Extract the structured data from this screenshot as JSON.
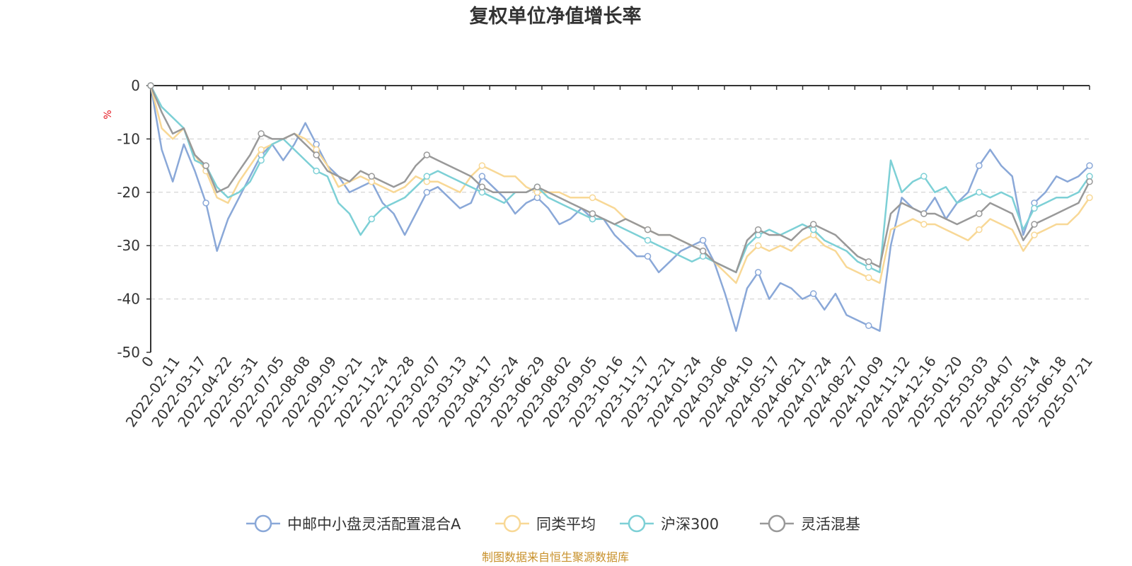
{
  "chart_data": {
    "type": "line",
    "title": "复权单位净值增长率",
    "ylabel": "%",
    "ylim": [
      -50,
      0
    ],
    "yticks": [
      0,
      -10,
      -20,
      -30,
      -40,
      -50
    ],
    "grid": true,
    "legend_position": "bottom",
    "x_labels": [
      "0",
      "2022-02-11",
      "2022-03-17",
      "2022-04-22",
      "2022-05-31",
      "2022-07-05",
      "2022-08-08",
      "2022-09-09",
      "2022-10-21",
      "2022-11-24",
      "2022-12-28",
      "2023-02-07",
      "2023-03-13",
      "2023-04-17",
      "2023-05-24",
      "2023-06-29",
      "2023-08-02",
      "2023-09-05",
      "2023-10-16",
      "2023-11-17",
      "2023-12-21",
      "2024-01-24",
      "2024-03-06",
      "2024-04-10",
      "2024-05-17",
      "2024-06-21",
      "2024-07-24",
      "2024-08-27",
      "2024-10-09",
      "2024-11-12",
      "2024-12-16",
      "2025-01-20",
      "2025-03-03",
      "2025-04-07",
      "2025-05-14",
      "2025-06-18",
      "2025-07-21"
    ],
    "series": [
      {
        "name": "中邮中小盘灵活配置混合A",
        "color": "#8aa8d8",
        "values": [
          0,
          -12,
          -18,
          -11,
          -16,
          -22,
          -31,
          -25,
          -21,
          -17,
          -13,
          -11,
          -14,
          -11,
          -7,
          -11,
          -15,
          -17,
          -20,
          -19,
          -18,
          -22,
          -24,
          -28,
          -24,
          -20,
          -19,
          -21,
          -23,
          -22,
          -17,
          -19,
          -21,
          -24,
          -22,
          -21,
          -23,
          -26,
          -25,
          -23,
          -25,
          -25,
          -28,
          -30,
          -32,
          -32,
          -35,
          -33,
          -31,
          -30,
          -29,
          -33,
          -39,
          -46,
          -38,
          -35,
          -40,
          -37,
          -38,
          -40,
          -39,
          -42,
          -39,
          -43,
          -44,
          -45,
          -46,
          -30,
          -21,
          -23,
          -24,
          -21,
          -25,
          -22,
          -20,
          -15,
          -12,
          -15,
          -17,
          -28,
          -22,
          -20,
          -17,
          -18,
          -17,
          -15
        ]
      },
      {
        "name": "同类平均",
        "color": "#f8d896",
        "values": [
          0,
          -8,
          -10,
          -8,
          -13,
          -16,
          -21,
          -22,
          -18,
          -15,
          -12,
          -11,
          -10,
          -9,
          -10,
          -12,
          -15,
          -19,
          -18,
          -17,
          -18,
          -19,
          -20,
          -19,
          -17,
          -18,
          -18,
          -19,
          -20,
          -17,
          -15,
          -16,
          -17,
          -17,
          -19,
          -20,
          -20,
          -20,
          -21,
          -21,
          -21,
          -22,
          -23,
          -25,
          -26,
          -27,
          -28,
          -28,
          -29,
          -30,
          -31,
          -33,
          -35,
          -37,
          -32,
          -30,
          -31,
          -30,
          -31,
          -29,
          -28,
          -30,
          -31,
          -34,
          -35,
          -36,
          -37,
          -27,
          -26,
          -25,
          -26,
          -26,
          -27,
          -28,
          -29,
          -27,
          -25,
          -26,
          -27,
          -31,
          -28,
          -27,
          -26,
          -26,
          -24,
          -21
        ]
      },
      {
        "name": "沪深300",
        "color": "#7dd0d6",
        "values": [
          0,
          -4,
          -6,
          -8,
          -14,
          -15,
          -19,
          -21,
          -20,
          -18,
          -14,
          -11,
          -10,
          -12,
          -14,
          -16,
          -17,
          -22,
          -24,
          -28,
          -25,
          -23,
          -22,
          -21,
          -19,
          -17,
          -16,
          -17,
          -18,
          -19,
          -20,
          -21,
          -22,
          -20,
          -20,
          -19,
          -21,
          -22,
          -23,
          -24,
          -25,
          -25,
          -26,
          -27,
          -28,
          -29,
          -30,
          -31,
          -32,
          -33,
          -32,
          -33,
          -34,
          -35,
          -30,
          -28,
          -27,
          -28,
          -27,
          -26,
          -27,
          -29,
          -30,
          -31,
          -33,
          -34,
          -35,
          -14,
          -20,
          -18,
          -17,
          -20,
          -19,
          -22,
          -21,
          -20,
          -21,
          -20,
          -21,
          -27,
          -23,
          -22,
          -21,
          -21,
          -20,
          -17
        ]
      },
      {
        "name": "灵活混基",
        "color": "#999999",
        "values": [
          0,
          -5,
          -9,
          -8,
          -13,
          -15,
          -20,
          -19,
          -16,
          -13,
          -9,
          -10,
          -10,
          -9,
          -11,
          -13,
          -16,
          -17,
          -18,
          -16,
          -17,
          -18,
          -19,
          -18,
          -15,
          -13,
          -14,
          -15,
          -16,
          -17,
          -19,
          -20,
          -20,
          -20,
          -20,
          -19,
          -20,
          -21,
          -22,
          -23,
          -24,
          -25,
          -26,
          -25,
          -26,
          -27,
          -28,
          -28,
          -29,
          -30,
          -31,
          -33,
          -34,
          -35,
          -29,
          -27,
          -28,
          -28,
          -29,
          -27,
          -26,
          -27,
          -28,
          -30,
          -32,
          -33,
          -34,
          -24,
          -22,
          -23,
          -24,
          -24,
          -25,
          -26,
          -25,
          -24,
          -22,
          -23,
          -24,
          -29,
          -26,
          -25,
          -24,
          -23,
          -22,
          -18
        ]
      }
    ]
  },
  "source_note": "制图数据来自恒生聚源数据库"
}
